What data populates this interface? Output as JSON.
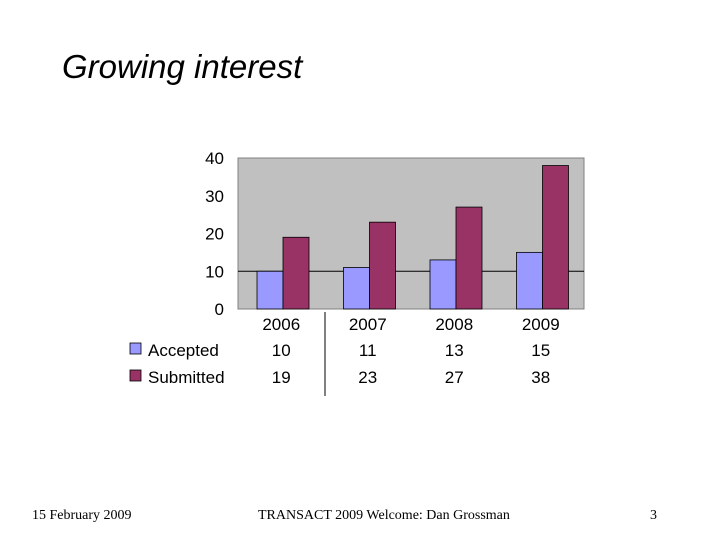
{
  "slide": {
    "title": "Growing interest"
  },
  "footer": {
    "date": "15 February 2009",
    "event": "TRANSACT 2009  Welcome: Dan Grossman",
    "page": "3"
  },
  "colors": {
    "accepted": "#9999ff",
    "submitted": "#993366",
    "plot_background": "#c0c0c0",
    "gridline": "#000000"
  },
  "chart_data": {
    "type": "bar",
    "title": "",
    "xlabel": "",
    "ylabel": "",
    "categories": [
      "2006",
      "2007",
      "2008",
      "2009"
    ],
    "series": [
      {
        "name": "Accepted",
        "values": [
          10,
          11,
          13,
          15
        ]
      },
      {
        "name": "Submitted",
        "values": [
          19,
          23,
          27,
          38
        ]
      }
    ],
    "ylim": [
      0,
      40
    ],
    "yticks": [
      "0",
      "10",
      "20",
      "30",
      "40"
    ],
    "grid": "horizontal",
    "legend": "data-table-below",
    "data_table": true
  }
}
